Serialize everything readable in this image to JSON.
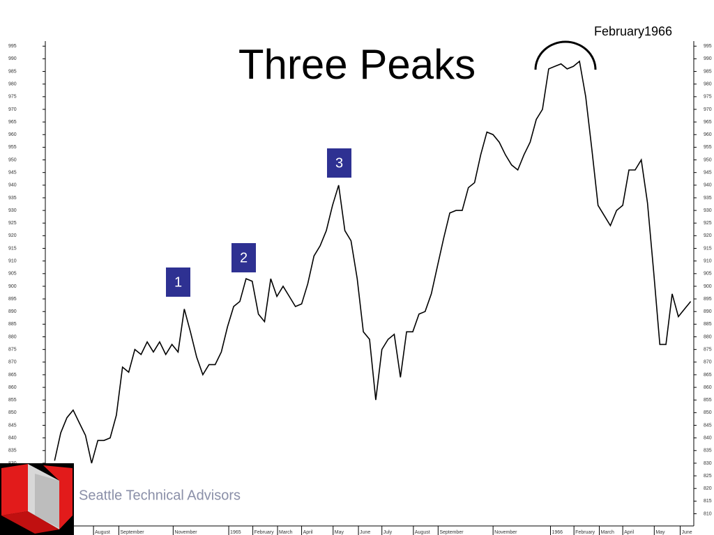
{
  "chart_data": {
    "type": "line",
    "title": "Three Peaks",
    "annotation": "February1966",
    "footer": "Seattle Technical Advisors",
    "markers": [
      "1",
      "2",
      "3"
    ],
    "color": "#000000",
    "x": [
      0,
      1,
      2,
      3,
      4,
      5,
      6,
      7,
      8,
      9,
      10,
      11,
      12,
      13,
      14,
      15,
      16,
      17,
      18,
      19,
      20,
      21,
      22,
      23,
      24,
      25,
      26,
      27,
      28,
      29,
      30,
      31,
      32,
      33,
      34,
      35,
      36,
      37,
      38,
      39,
      40,
      41,
      42,
      43,
      44,
      45,
      46,
      47,
      48,
      49,
      50,
      51,
      52,
      53,
      54,
      55,
      56,
      57,
      58,
      59,
      60,
      61,
      62,
      63,
      64,
      65,
      66,
      67,
      68,
      69,
      70,
      71,
      72,
      73,
      74,
      75,
      76,
      77,
      78,
      79,
      80,
      81,
      82,
      83,
      84,
      85,
      86,
      87,
      88,
      89,
      90,
      91,
      92,
      93,
      94,
      95,
      96,
      97,
      98,
      99,
      100,
      101,
      102,
      103
    ],
    "values": [
      831,
      842,
      848,
      851,
      846,
      841,
      830,
      839,
      839,
      840,
      849,
      868,
      866,
      875,
      873,
      878,
      874,
      878,
      873,
      877,
      874,
      891,
      882,
      872,
      865,
      869,
      869,
      874,
      884,
      892,
      894,
      903,
      902,
      889,
      886,
      903,
      896,
      900,
      896,
      892,
      893,
      901,
      912,
      916,
      922,
      932,
      940,
      922,
      918,
      903,
      882,
      879,
      855,
      875,
      879,
      881,
      864,
      882,
      882,
      889,
      890,
      897,
      908,
      919,
      929,
      930,
      930,
      939,
      941,
      952,
      961,
      960,
      957,
      952,
      948,
      946,
      952,
      957,
      966,
      970,
      986,
      987,
      988,
      986,
      987,
      989,
      975,
      954,
      932,
      928,
      924,
      930,
      932,
      946,
      946,
      950,
      933,
      906,
      877,
      877,
      897,
      888,
      891,
      894
    ],
    "xlim": [
      -1.5,
      103.5
    ],
    "xticks": [
      {
        "value": 6.3,
        "label": "August"
      },
      {
        "value": 10.4,
        "label": "September"
      },
      {
        "value": 19.2,
        "label": "November"
      },
      {
        "value": 28.2,
        "label": "1965"
      },
      {
        "value": 32.1,
        "label": "February"
      },
      {
        "value": 36.1,
        "label": "March"
      },
      {
        "value": 40.0,
        "label": "April"
      },
      {
        "value": 45.1,
        "label": "May"
      },
      {
        "value": 49.2,
        "label": "June"
      },
      {
        "value": 53.0,
        "label": "July"
      },
      {
        "value": 58.1,
        "label": "August"
      },
      {
        "value": 62.1,
        "label": "September"
      },
      {
        "value": 71.0,
        "label": "November"
      },
      {
        "value": 80.3,
        "label": "1966"
      },
      {
        "value": 84.1,
        "label": "February"
      },
      {
        "value": 88.2,
        "label": "March"
      },
      {
        "value": 92.0,
        "label": "April"
      },
      {
        "value": 97.1,
        "label": "May"
      },
      {
        "value": 101.3,
        "label": "June"
      }
    ],
    "ylim": [
      806,
      997
    ],
    "yticks": [
      810,
      815,
      820,
      825,
      830,
      835,
      840,
      845,
      850,
      855,
      860,
      865,
      870,
      875,
      880,
      885,
      890,
      895,
      900,
      905,
      910,
      915,
      920,
      925,
      930,
      935,
      940,
      945,
      950,
      955,
      960,
      965,
      970,
      975,
      980,
      985,
      990,
      995
    ]
  }
}
